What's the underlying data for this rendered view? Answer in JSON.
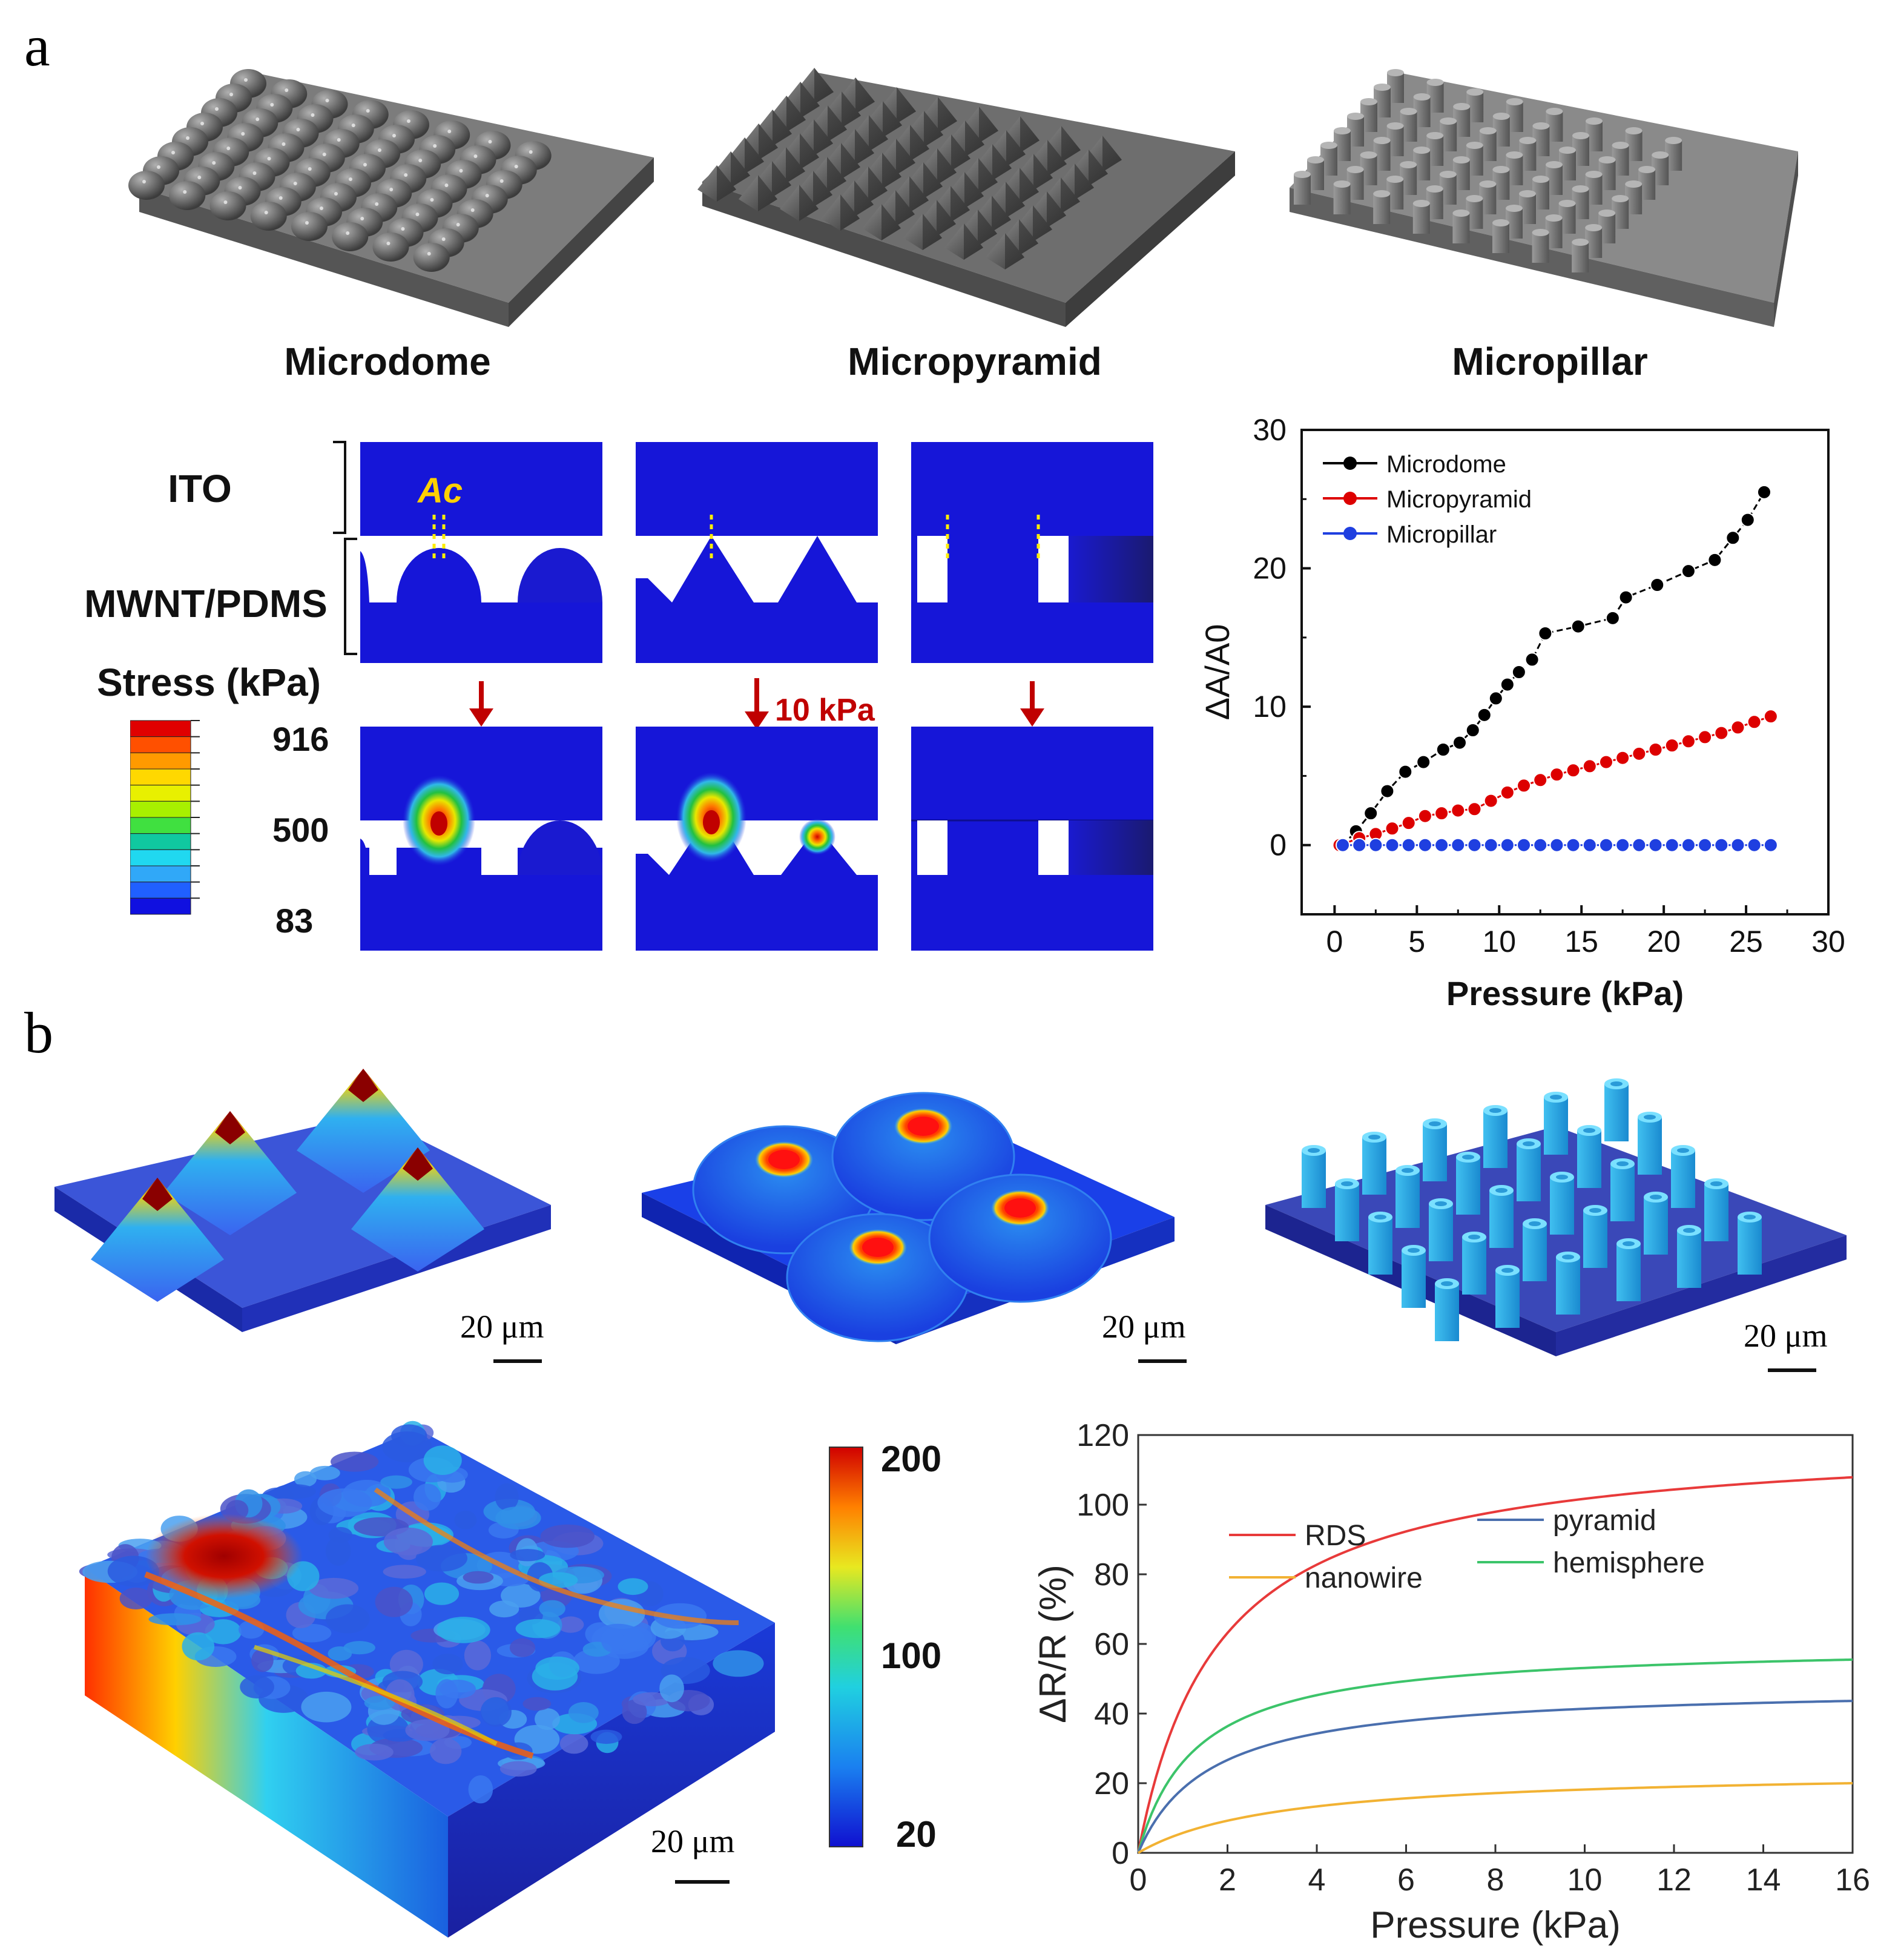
{
  "figure": {
    "panel_a": "a",
    "panel_b": "b",
    "structures": [
      "Microdome",
      "Micropyramid",
      "Micropillar"
    ],
    "layers": {
      "top": "ITO",
      "bottom": "MWNT/PDMS"
    },
    "contact_label": "Ac",
    "stress_title": "Stress (kPa)",
    "stress_ticks": [
      "916",
      "500",
      "83"
    ],
    "load_label": "10 kPa",
    "scale_label": "20 μm",
    "colorbar_b_ticks": [
      "200",
      "100",
      "20"
    ],
    "colors": {
      "navy": "#1a1aa8",
      "cyan": "#5ec8f0",
      "red": "#c80000"
    }
  },
  "chart_data": [
    {
      "type": "scatter",
      "title": "",
      "xlabel": "Pressure (kPa)",
      "ylabel": "ΔA/A0",
      "xlim": [
        -2,
        30
      ],
      "ylim": [
        -5,
        30
      ],
      "xticks": [
        0,
        5,
        10,
        15,
        20,
        25,
        30
      ],
      "yticks": [
        0,
        10,
        20,
        30
      ],
      "legend_position": "top-left",
      "series": [
        {
          "name": "Microdome",
          "color": "#000000",
          "x": [
            0.5,
            1.3,
            2.2,
            3.2,
            4.3,
            5.4,
            6.6,
            7.6,
            8.4,
            9.1,
            9.8,
            10.5,
            11.2,
            12,
            12.8,
            14.8,
            16.9,
            17.7,
            19.6,
            21.5,
            23.1,
            24.2,
            25.1,
            26.1
          ],
          "y": [
            0,
            1,
            2.3,
            3.9,
            5.3,
            6,
            6.9,
            7.4,
            8.3,
            9.4,
            10.6,
            11.6,
            12.5,
            13.4,
            15.3,
            15.8,
            16.4,
            17.9,
            18.8,
            19.8,
            20.6,
            22.2,
            23.5,
            25.5
          ]
        },
        {
          "name": "Micropyramid",
          "color": "#dd0000",
          "x": [
            0.3,
            1.5,
            2.5,
            3.5,
            4.5,
            5.5,
            6.5,
            7.5,
            8.5,
            9.5,
            10.5,
            11.5,
            12.5,
            13.5,
            14.5,
            15.5,
            16.5,
            17.5,
            18.5,
            19.5,
            20.5,
            21.5,
            22.5,
            23.5,
            24.5,
            25.5,
            26.5
          ],
          "y": [
            0,
            0.5,
            0.8,
            1.2,
            1.6,
            2.1,
            2.3,
            2.5,
            2.6,
            3.2,
            3.8,
            4.3,
            4.7,
            5.1,
            5.4,
            5.7,
            6.0,
            6.3,
            6.6,
            6.9,
            7.2,
            7.5,
            7.8,
            8.1,
            8.5,
            8.9,
            9.3
          ]
        },
        {
          "name": "Micropillar",
          "color": "#1f3fe0",
          "x": [
            0.5,
            1.5,
            2.5,
            3.5,
            4.5,
            5.5,
            6.5,
            7.5,
            8.5,
            9.5,
            10.5,
            11.5,
            12.5,
            13.5,
            14.5,
            15.5,
            16.5,
            17.5,
            18.5,
            19.5,
            20.5,
            21.5,
            22.5,
            23.5,
            24.5,
            25.5,
            26.5
          ],
          "y": [
            0,
            0,
            0,
            0,
            0,
            0,
            0,
            0,
            0,
            0,
            0,
            0,
            0,
            0,
            0,
            0,
            0,
            0,
            0,
            0,
            0,
            0,
            0,
            0,
            0,
            0,
            0
          ]
        }
      ]
    },
    {
      "type": "line",
      "title": "",
      "xlabel": "Pressure (kPa)",
      "ylabel": "ΔR/R (%)",
      "xlim": [
        0,
        16
      ],
      "ylim": [
        0,
        120
      ],
      "xticks": [
        0,
        2,
        4,
        6,
        8,
        10,
        12,
        14,
        16
      ],
      "yticks": [
        0,
        20,
        40,
        60,
        80,
        100,
        120
      ],
      "legend_position": "upper-center",
      "series": [
        {
          "name": "RDS",
          "color": "#e83a3a",
          "ymax": 120,
          "k": 1.8
        },
        {
          "name": "hemisphere",
          "color": "#3cc46a",
          "ymax": 60,
          "k": 1.3
        },
        {
          "name": "pyramid",
          "color": "#4a6fae",
          "ymax": 48,
          "k": 1.6
        },
        {
          "name": "nanowire",
          "color": "#f2b233",
          "ymax": 24,
          "k": 3.2
        }
      ]
    }
  ]
}
